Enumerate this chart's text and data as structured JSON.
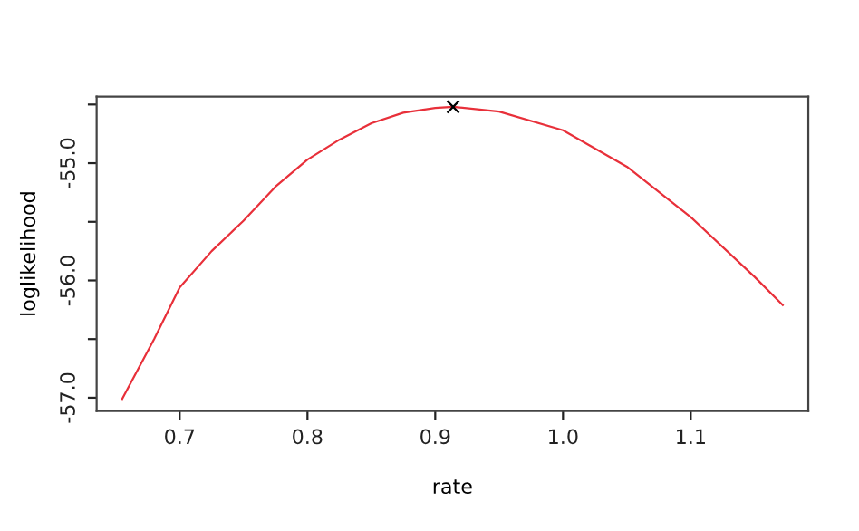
{
  "chart_data": {
    "type": "line",
    "xlabel": "rate",
    "ylabel": "loglikelihood",
    "xlim": [
      0.635,
      1.192
    ],
    "ylim": [
      -57.113,
      -54.433
    ],
    "xticks": [
      0.7,
      0.8,
      0.9,
      {
        "value": 1.0,
        "label": "1.0"
      },
      1.1
    ],
    "yticks": [
      {
        "value": -57.0,
        "label": "-57.0"
      },
      {
        "value": -56.5,
        "label": null
      },
      {
        "value": -56.0,
        "label": "-56.0"
      },
      {
        "value": -55.5,
        "label": null
      },
      {
        "value": -55.0,
        "label": "-55.0"
      },
      {
        "value": -54.5,
        "label": null
      }
    ],
    "grid": false,
    "series": [
      {
        "color": "#e8303a",
        "marker": "none",
        "line_style": "solid",
        "x": [
          0.655,
          0.68,
          0.7,
          0.725,
          0.75,
          0.775,
          0.8,
          0.825,
          0.85,
          0.875,
          0.9,
          0.914,
          0.95,
          1.0,
          1.05,
          1.1,
          1.15,
          1.172
        ],
        "values": [
          -57.01,
          -56.5,
          -56.06,
          -55.75,
          -55.49,
          -55.2,
          -54.97,
          -54.8,
          -54.66,
          -54.57,
          -54.53,
          -54.52,
          -54.56,
          -54.72,
          -55.03,
          -55.46,
          -55.97,
          -56.21
        ]
      },
      {
        "type": "scatter",
        "color": "#000000",
        "marker": "cross",
        "x": [
          0.914
        ],
        "values": [
          -54.52
        ]
      }
    ]
  }
}
